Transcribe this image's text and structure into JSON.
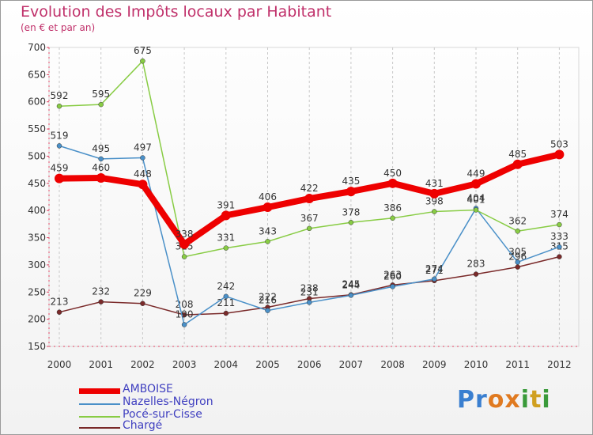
{
  "title": "Evolution des Impôts locaux par Habitant",
  "subtitle": "(en € et par an)",
  "chart_data": {
    "type": "line",
    "title": "Evolution des Impôts locaux par Habitant",
    "subtitle": "(en € et par an)",
    "xlabel": "",
    "ylabel": "",
    "ylim": [
      150,
      700
    ],
    "yticks": [
      150,
      200,
      250,
      300,
      350,
      400,
      450,
      500,
      550,
      600,
      650,
      700
    ],
    "categories": [
      "2000",
      "2001",
      "2002",
      "2003",
      "2004",
      "2005",
      "2006",
      "2007",
      "2008",
      "2009",
      "2010",
      "2011",
      "2012"
    ],
    "grid": "vertical dashed",
    "legend_position": "bottom-left",
    "series": [
      {
        "name": "Chargé",
        "color": "#7a2a2a",
        "values": [
          213,
          232,
          229,
          208,
          211,
          222,
          238,
          245,
          263,
          271,
          283,
          296,
          315
        ],
        "labels": [
          "213",
          "232",
          "229",
          "208",
          "211",
          "222",
          "238",
          "245",
          "263",
          "271",
          "283",
          "296",
          "315"
        ]
      },
      {
        "name": "Nazelles-Négron",
        "color": "#4a90c8",
        "values": [
          519,
          495,
          497,
          190,
          242,
          216,
          231,
          244,
          260,
          274,
          404,
          305,
          333
        ],
        "labels": [
          "519",
          "495",
          "497",
          "190",
          "242",
          "216",
          "231",
          "244",
          "260",
          "274",
          "404",
          "305",
          "333"
        ]
      },
      {
        "name": "Pocé-sur-Cisse",
        "color": "#88cc44",
        "values": [
          592,
          595,
          675,
          315,
          331,
          343,
          367,
          378,
          386,
          398,
          401,
          362,
          374
        ],
        "labels": [
          "592",
          "595",
          "675",
          "315",
          "331",
          "343",
          "367",
          "378",
          "386",
          "398",
          "401",
          "362",
          "374"
        ]
      },
      {
        "name": "AMBOISE",
        "color": "#ee0000",
        "values": [
          459,
          460,
          448,
          338,
          391,
          406,
          422,
          435,
          450,
          431,
          449,
          485,
          503
        ],
        "labels": [
          "459",
          "460",
          "448",
          "338",
          "391",
          "406",
          "422",
          "435",
          "450",
          "431",
          "449",
          "485",
          "503"
        ]
      }
    ]
  },
  "legend": [
    {
      "label": "AMBOISE",
      "color": "#ee0000"
    },
    {
      "label": "Nazelles-Négron",
      "color": "#4a90c8"
    },
    {
      "label": "Pocé-sur-Cisse",
      "color": "#88cc44"
    },
    {
      "label": "Chargé",
      "color": "#7a2a2a"
    }
  ],
  "logo": {
    "text": "Proxiti",
    "letters": [
      "P",
      "r",
      "o",
      "x",
      "i",
      "t",
      "i"
    ],
    "colors": [
      "#3a7fd0",
      "#3a7fd0",
      "#e07a20",
      "#e07a20",
      "#3a9a3a",
      "#d0a020",
      "#3a9a3a"
    ]
  }
}
